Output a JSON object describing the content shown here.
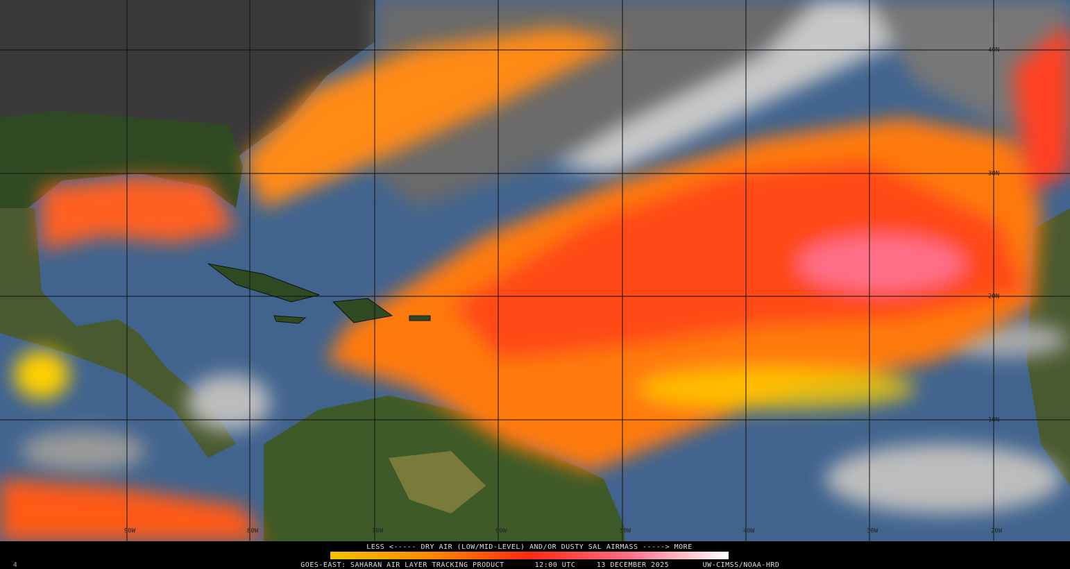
{
  "map": {
    "lat_labels": [
      "40N",
      "30N",
      "20N",
      "10N"
    ],
    "lon_labels": [
      "90W",
      "80W",
      "70W",
      "60W",
      "50W",
      "40W",
      "30W",
      "20W"
    ]
  },
  "legend": {
    "caption": "LESS <----- DRY AIR (LOW/MID-LEVEL) AND/OR DUSTY SAL AIRMASS -----> MORE",
    "product": "GOES-EAST: SAHARAN AIR LAYER TRACKING PRODUCT",
    "time": "12:00 UTC",
    "date": "13 DECEMBER 2025",
    "credit": "UW-CIMSS/NOAA-HRD",
    "frame": "4"
  }
}
